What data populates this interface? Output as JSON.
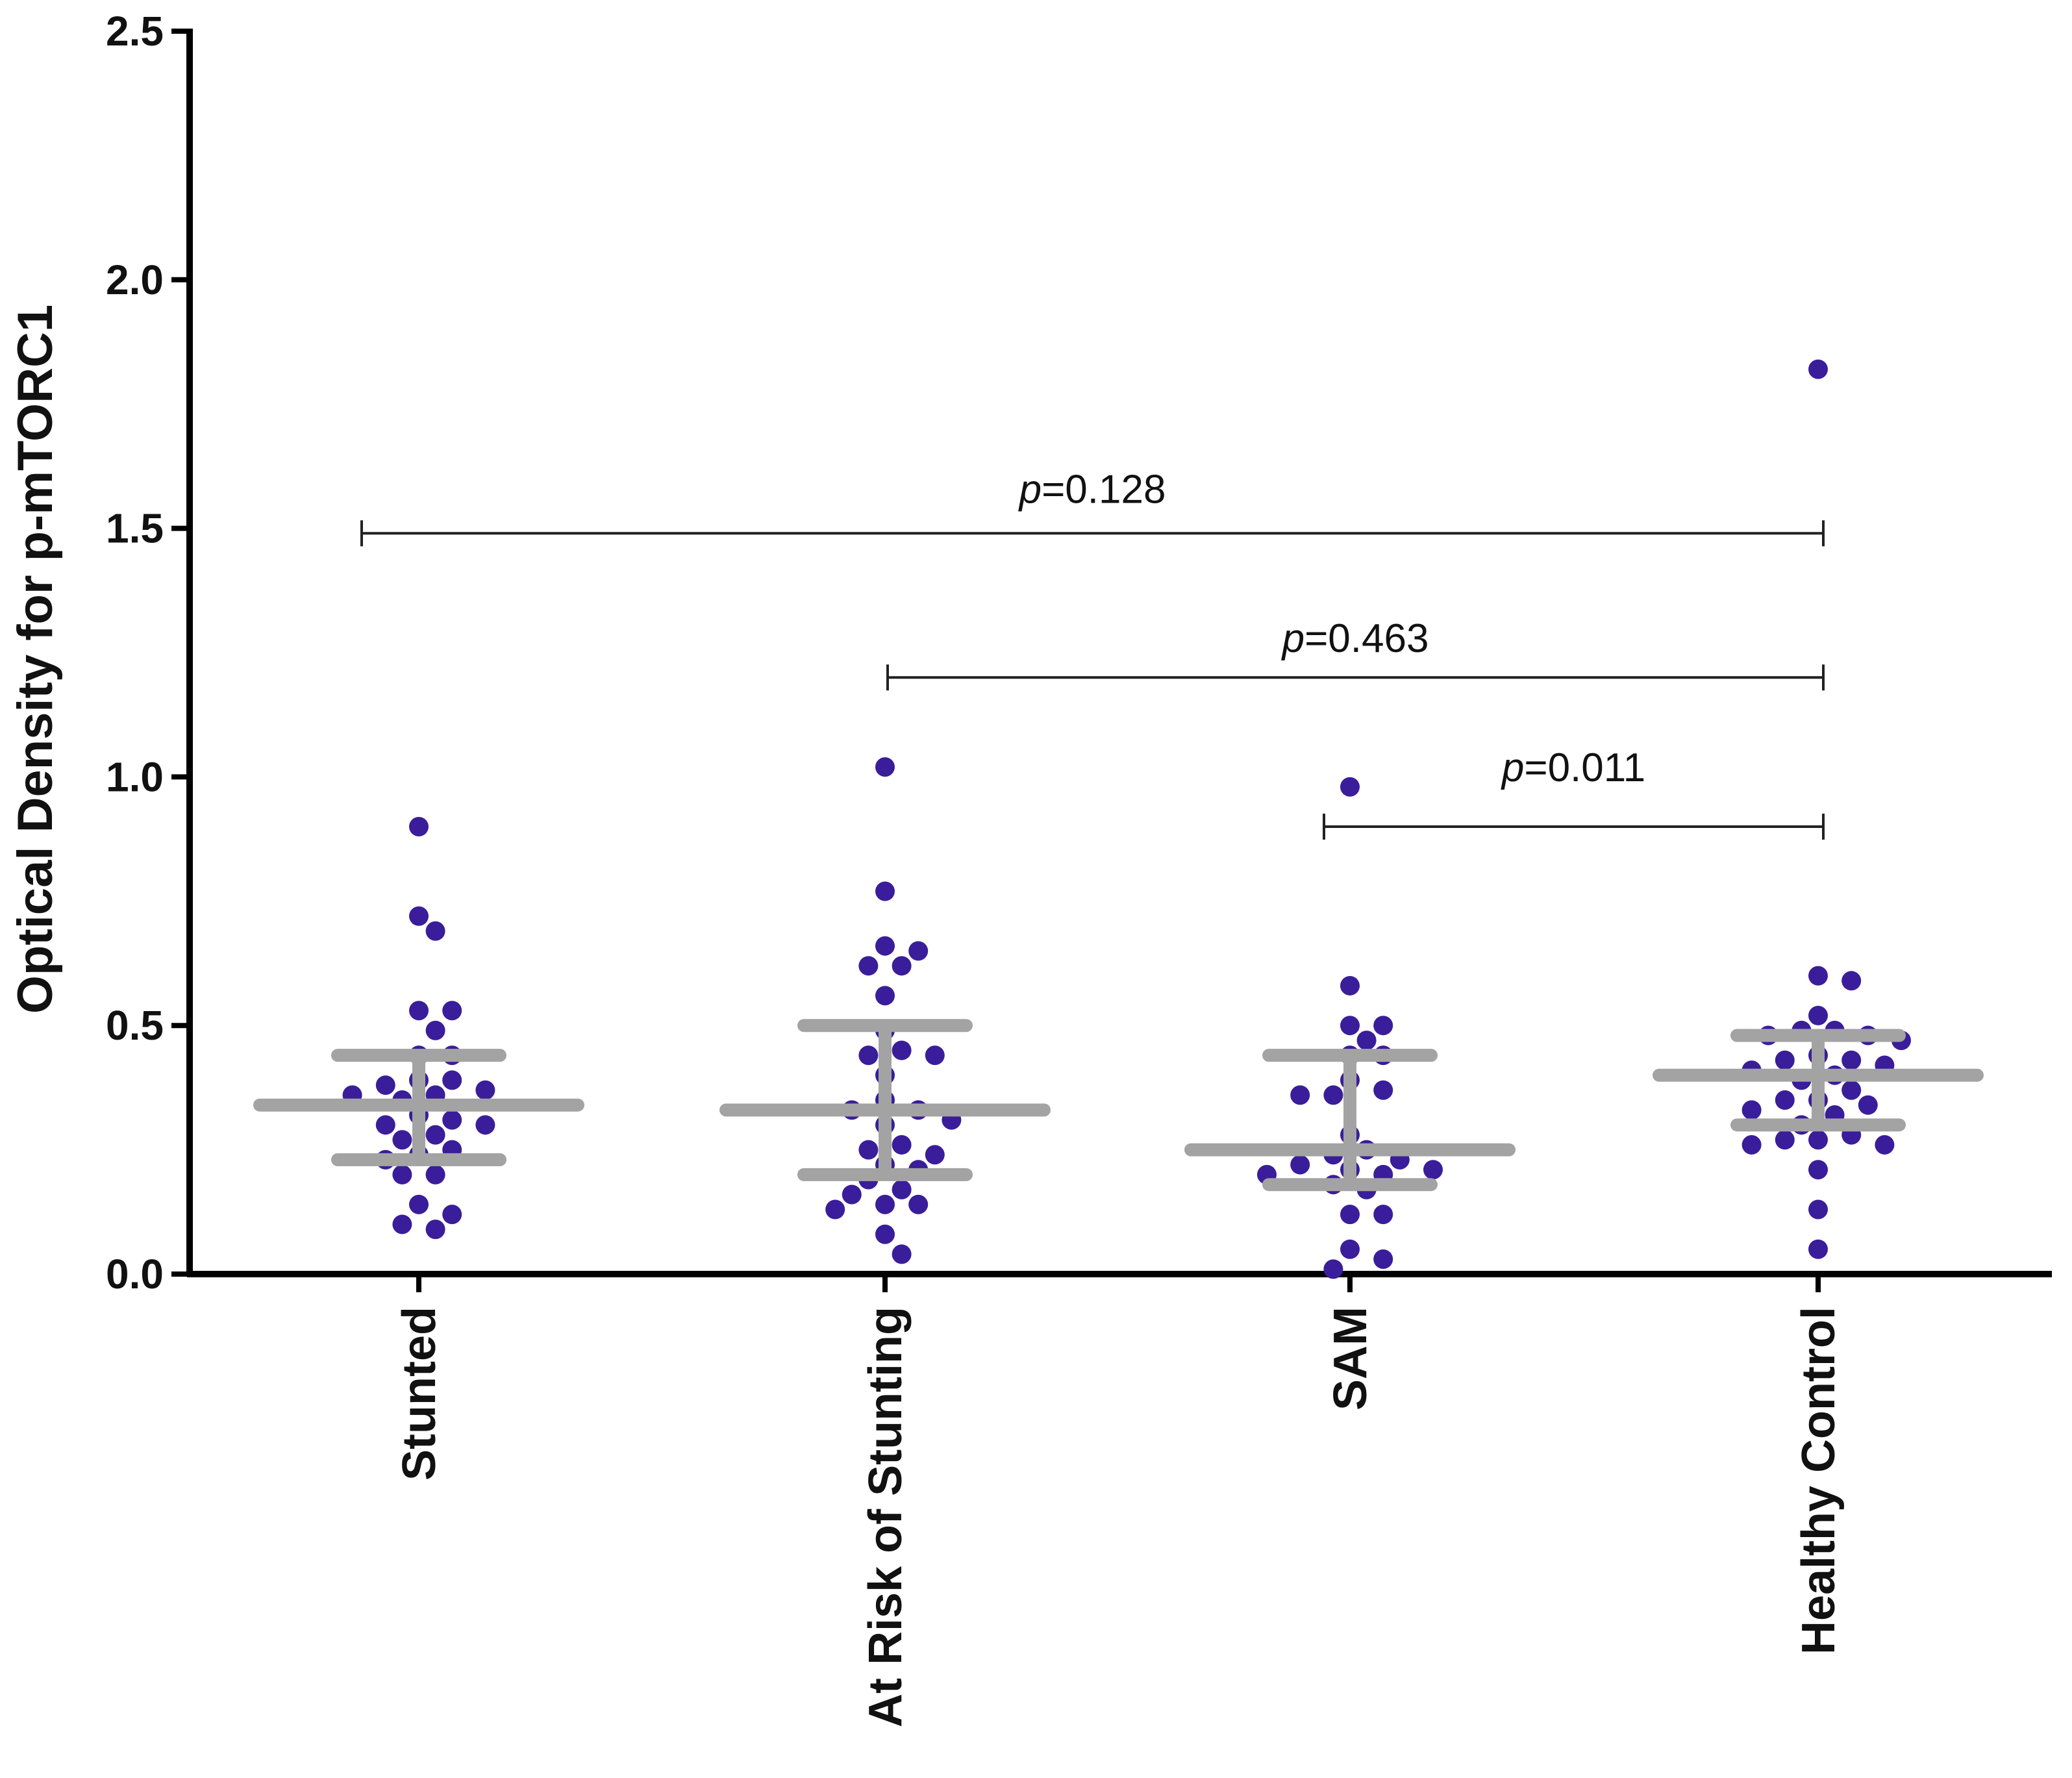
{
  "chart_data": {
    "type": "scatter",
    "subtype": "dot-plot-with-median-and-IQR",
    "ylabel": "Optical Density for p-mTORC1",
    "ylim": [
      0,
      2.5
    ],
    "yticks": [
      "0.0",
      "0.5",
      "1.0",
      "1.5",
      "2.0",
      "2.5"
    ],
    "categories": [
      "Stunted",
      "At Risk of Stunting",
      "SAM",
      "Healthy Control"
    ],
    "colors": {
      "points": "#3a1d9a",
      "summary": "#a3a3a3",
      "axis": "#000000",
      "bracket": "#222222"
    },
    "groups": [
      {
        "name": "Stunted",
        "median": 0.34,
        "q1": 0.23,
        "q3": 0.44,
        "points": [
          0.9,
          0.72,
          0.69,
          0.53,
          0.53,
          0.49,
          0.44,
          0.44,
          0.39,
          0.39,
          0.38,
          0.37,
          0.36,
          0.36,
          0.35,
          0.32,
          0.31,
          0.3,
          0.3,
          0.28,
          0.27,
          0.25,
          0.24,
          0.23,
          0.2,
          0.2,
          0.14,
          0.12,
          0.1,
          0.09
        ]
      },
      {
        "name": "At Risk of Stunting",
        "median": 0.33,
        "q1": 0.2,
        "q3": 0.5,
        "points": [
          1.02,
          0.77,
          0.66,
          0.65,
          0.62,
          0.62,
          0.56,
          0.49,
          0.45,
          0.44,
          0.44,
          0.4,
          0.35,
          0.33,
          0.33,
          0.31,
          0.3,
          0.26,
          0.25,
          0.24,
          0.22,
          0.21,
          0.19,
          0.17,
          0.16,
          0.14,
          0.14,
          0.13,
          0.08,
          0.04
        ]
      },
      {
        "name": "SAM",
        "median": 0.25,
        "q1": 0.18,
        "q3": 0.44,
        "points": [
          0.98,
          0.58,
          0.5,
          0.5,
          0.47,
          0.44,
          0.44,
          0.39,
          0.37,
          0.36,
          0.36,
          0.28,
          0.25,
          0.24,
          0.23,
          0.22,
          0.21,
          0.21,
          0.2,
          0.2,
          0.18,
          0.17,
          0.12,
          0.12,
          0.05,
          0.03,
          0.01
        ]
      },
      {
        "name": "Healthy Control",
        "median": 0.4,
        "q1": 0.3,
        "q3": 0.48,
        "points": [
          1.82,
          0.6,
          0.59,
          0.52,
          0.49,
          0.49,
          0.48,
          0.48,
          0.47,
          0.44,
          0.43,
          0.43,
          0.42,
          0.41,
          0.4,
          0.39,
          0.37,
          0.35,
          0.35,
          0.34,
          0.33,
          0.32,
          0.3,
          0.28,
          0.27,
          0.27,
          0.26,
          0.26,
          0.21,
          0.13,
          0.05
        ]
      }
    ],
    "comparisons": [
      {
        "from": "Stunted",
        "to": "Healthy Control",
        "prefix": "p",
        "value": "=0.128",
        "y": 1.49,
        "label_y": 1.58
      },
      {
        "from": "At Risk of Stunting",
        "to": "Healthy Control",
        "prefix": "p",
        "value": "=0.463",
        "y": 1.2,
        "label_y": 1.28
      },
      {
        "from": "SAM",
        "to": "Healthy Control",
        "prefix": "p",
        "value": "=0.011",
        "y": 0.9,
        "label_y": 1.02
      }
    ]
  }
}
